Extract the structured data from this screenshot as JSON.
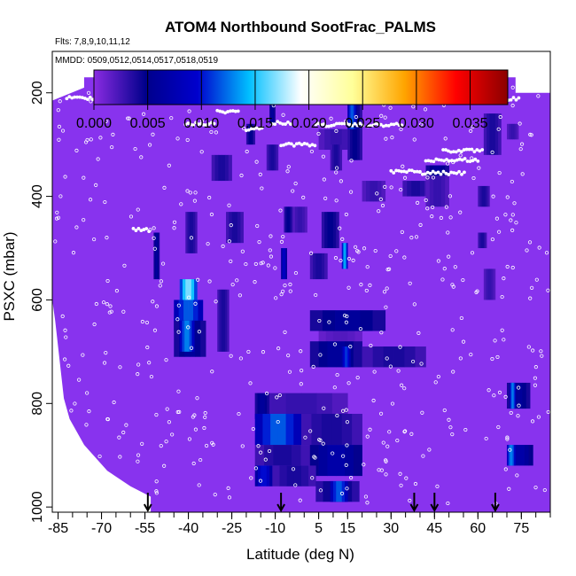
{
  "chart_data": {
    "type": "heatmap",
    "title": "ATOM4 Northbound SootFrac_PALMS",
    "flights_label": "Flts: 7,8,9,10,11,12",
    "dates_label": "MMDD: 0509,0512,0514,0517,0518,0519",
    "xlabel": "Latitude (deg N)",
    "ylabel": "PSXC (mbar)",
    "xlim": [
      -87,
      85
    ],
    "ylim": [
      1010,
      120
    ],
    "x_ticks": [
      -85,
      -70,
      -55,
      -40,
      -25,
      -10,
      5,
      15,
      30,
      45,
      60,
      75
    ],
    "x_tick_labels": [
      "-85",
      "-70",
      "-55",
      "-40",
      "-25",
      "-10",
      "5",
      "15",
      "30",
      "45",
      "60",
      "75"
    ],
    "y_ticks": [
      200,
      400,
      600,
      800,
      1000
    ],
    "y_tick_labels": [
      "200",
      "400",
      "600",
      "800",
      "1000"
    ],
    "colorbar": {
      "min": 0.0,
      "max": 0.0385,
      "ticks": [
        0.0,
        0.005,
        0.01,
        0.015,
        0.02,
        0.025,
        0.03,
        0.035
      ],
      "tick_labels": [
        "0.000",
        "0.005",
        "0.010",
        "0.015",
        "0.020",
        "0.025",
        "0.030",
        "0.035"
      ],
      "colors": [
        "#8a2be2",
        "#00008b",
        "#0000cd",
        "#00bfff",
        "#ffffff",
        "#ffff99",
        "#ffa500",
        "#ff0000",
        "#8b0000"
      ]
    },
    "background_value": 0.0,
    "background_color": "#8833ee",
    "coverage_profile": [
      {
        "p": 170,
        "lat_min": -76
      },
      {
        "p": 190,
        "lat_min": -76
      },
      {
        "p": 215,
        "lat_min": -87
      },
      {
        "p": 600,
        "lat_min": -87
      },
      {
        "p": 640,
        "lat_min": -86
      },
      {
        "p": 690,
        "lat_min": -85
      },
      {
        "p": 740,
        "lat_min": -84
      },
      {
        "p": 790,
        "lat_min": -83
      },
      {
        "p": 830,
        "lat_min": -81
      },
      {
        "p": 880,
        "lat_min": -76
      },
      {
        "p": 930,
        "lat_min": -68
      },
      {
        "p": 960,
        "lat_min": -60
      },
      {
        "p": 980,
        "lat_min": -53
      },
      {
        "p": 1010,
        "lat_min": -53
      }
    ],
    "coverage_lat_max": 85,
    "coverage_lat_max_top": 73,
    "cells": [
      {
        "lat": [
          -43,
          -37
        ],
        "p": [
          560,
          620
        ],
        "v": 0.017
      },
      {
        "lat": [
          -45,
          -35
        ],
        "p": [
          600,
          660
        ],
        "v": 0.012
      },
      {
        "lat": [
          -45,
          -34
        ],
        "p": [
          640,
          710
        ],
        "v": 0.006
      },
      {
        "lat": [
          -43,
          -38
        ],
        "p": [
          640,
          700
        ],
        "v": 0.013
      },
      {
        "lat": [
          -30,
          -26
        ],
        "p": [
          580,
          700
        ],
        "v": 0.004
      },
      {
        "lat": [
          -52,
          -50
        ],
        "p": [
          470,
          560
        ],
        "v": 0.006
      },
      {
        "lat": [
          -41,
          -37
        ],
        "p": [
          430,
          510
        ],
        "v": 0.004
      },
      {
        "lat": [
          -27,
          -21
        ],
        "p": [
          430,
          490
        ],
        "v": 0.004
      },
      {
        "lat": [
          -32,
          -25
        ],
        "p": [
          320,
          370
        ],
        "v": 0.004
      },
      {
        "lat": [
          -20,
          -17
        ],
        "p": [
          260,
          300
        ],
        "v": 0.005
      },
      {
        "lat": [
          -13,
          -9
        ],
        "p": [
          300,
          350
        ],
        "v": 0.004
      },
      {
        "lat": [
          -12,
          -10
        ],
        "p": [
          220,
          260
        ],
        "v": 0.006
      },
      {
        "lat": [
          -7,
          -4
        ],
        "p": [
          420,
          470
        ],
        "v": 0.005
      },
      {
        "lat": [
          -8,
          -6
        ],
        "p": [
          500,
          560
        ],
        "v": 0.009
      },
      {
        "lat": [
          -4,
          1
        ],
        "p": [
          420,
          470
        ],
        "v": 0.003
      },
      {
        "lat": [
          2,
          8
        ],
        "p": [
          510,
          560
        ],
        "v": 0.004
      },
      {
        "lat": [
          6,
          12
        ],
        "p": [
          430,
          500
        ],
        "v": 0.005
      },
      {
        "lat": [
          13,
          15
        ],
        "p": [
          490,
          540
        ],
        "v": 0.014
      },
      {
        "lat": [
          5,
          17
        ],
        "p": [
          270,
          310
        ],
        "v": 0.003
      },
      {
        "lat": [
          15,
          20
        ],
        "p": [
          220,
          330
        ],
        "v": 0.005
      },
      {
        "lat": [
          15,
          18
        ],
        "p": [
          220,
          270
        ],
        "v": 0.012
      },
      {
        "lat": [
          9,
          13
        ],
        "p": [
          300,
          350
        ],
        "v": 0.004
      },
      {
        "lat": [
          20,
          28
        ],
        "p": [
          370,
          410
        ],
        "v": 0.003
      },
      {
        "lat": [
          34,
          43
        ],
        "p": [
          370,
          400
        ],
        "v": 0.004
      },
      {
        "lat": [
          42,
          50
        ],
        "p": [
          360,
          420
        ],
        "v": 0.003
      },
      {
        "lat": [
          42,
          50
        ],
        "p": [
          340,
          360
        ],
        "v": 0.006
      },
      {
        "lat": [
          60,
          63
        ],
        "p": [
          470,
          500
        ],
        "v": 0.004
      },
      {
        "lat": [
          62,
          66
        ],
        "p": [
          540,
          600
        ],
        "v": 0.003
      },
      {
        "lat": [
          62,
          68
        ],
        "p": [
          240,
          320
        ],
        "v": 0.004
      },
      {
        "lat": [
          70,
          74
        ],
        "p": [
          260,
          290
        ],
        "v": 0.003
      },
      {
        "lat": [
          60,
          64
        ],
        "p": [
          380,
          420
        ],
        "v": 0.004
      },
      {
        "lat": [
          2,
          28
        ],
        "p": [
          620,
          660
        ],
        "v": 0.006
      },
      {
        "lat": [
          5,
          20
        ],
        "p": [
          660,
          690
        ],
        "v": 0.002
      },
      {
        "lat": [
          2,
          20
        ],
        "p": [
          680,
          730
        ],
        "v": 0.006
      },
      {
        "lat": [
          13,
          16
        ],
        "p": [
          690,
          730
        ],
        "v": 0.011
      },
      {
        "lat": [
          20,
          42
        ],
        "p": [
          690,
          730
        ],
        "v": 0.004
      },
      {
        "lat": [
          -17,
          15
        ],
        "p": [
          780,
          830
        ],
        "v": 0.003
      },
      {
        "lat": [
          -17,
          -12
        ],
        "p": [
          780,
          830
        ],
        "v": 0.006
      },
      {
        "lat": [
          -17,
          -1
        ],
        "p": [
          820,
          880
        ],
        "v": 0.012
      },
      {
        "lat": [
          -1,
          20
        ],
        "p": [
          820,
          880
        ],
        "v": 0.004
      },
      {
        "lat": [
          -17,
          2
        ],
        "p": [
          880,
          920
        ],
        "v": 0.004
      },
      {
        "lat": [
          2,
          20
        ],
        "p": [
          880,
          940
        ],
        "v": 0.007
      },
      {
        "lat": [
          -17,
          -11
        ],
        "p": [
          920,
          960
        ],
        "v": 0.01
      },
      {
        "lat": [
          -11,
          4
        ],
        "p": [
          920,
          960
        ],
        "v": 0.004
      },
      {
        "lat": [
          4,
          19
        ],
        "p": [
          950,
          990
        ],
        "v": 0.005
      },
      {
        "lat": [
          9,
          15
        ],
        "p": [
          950,
          990
        ],
        "v": 0.012
      },
      {
        "lat": [
          70,
          78
        ],
        "p": [
          760,
          810
        ],
        "v": 0.006
      },
      {
        "lat": [
          71,
          73
        ],
        "p": [
          760,
          810
        ],
        "v": 0.013
      },
      {
        "lat": [
          70,
          79
        ],
        "p": [
          880,
          920
        ],
        "v": 0.007
      },
      {
        "lat": [
          70,
          73
        ],
        "p": [
          880,
          920
        ],
        "v": 0.013
      }
    ],
    "flight_track_dots": [
      {
        "lat": [
          -82,
          -72
        ],
        "p": 210
      },
      {
        "lat": [
          -72,
          -61
        ],
        "p": 188
      },
      {
        "lat": [
          -41,
          -31
        ],
        "p": 260
      },
      {
        "lat": [
          -30,
          -22
        ],
        "p": 236
      },
      {
        "lat": [
          -20,
          -14
        ],
        "p": 270
      },
      {
        "lat": [
          -11,
          -4
        ],
        "p": 258
      },
      {
        "lat": [
          -8,
          4
        ],
        "p": 300
      },
      {
        "lat": [
          4,
          21
        ],
        "p": 262
      },
      {
        "lat": [
          22,
          34
        ],
        "p": 262
      },
      {
        "lat": [
          30,
          40
        ],
        "p": 352
      },
      {
        "lat": [
          40,
          56
        ],
        "p": 355
      },
      {
        "lat": [
          42,
          60
        ],
        "p": 330
      },
      {
        "lat": [
          48,
          62
        ],
        "p": 312
      },
      {
        "lat": [
          66,
          75
        ],
        "p": 212
      },
      {
        "lat": [
          -59,
          -53
        ],
        "p": 465
      }
    ],
    "arrow_latitudes": [
      -54,
      -8,
      38,
      45,
      66
    ]
  }
}
